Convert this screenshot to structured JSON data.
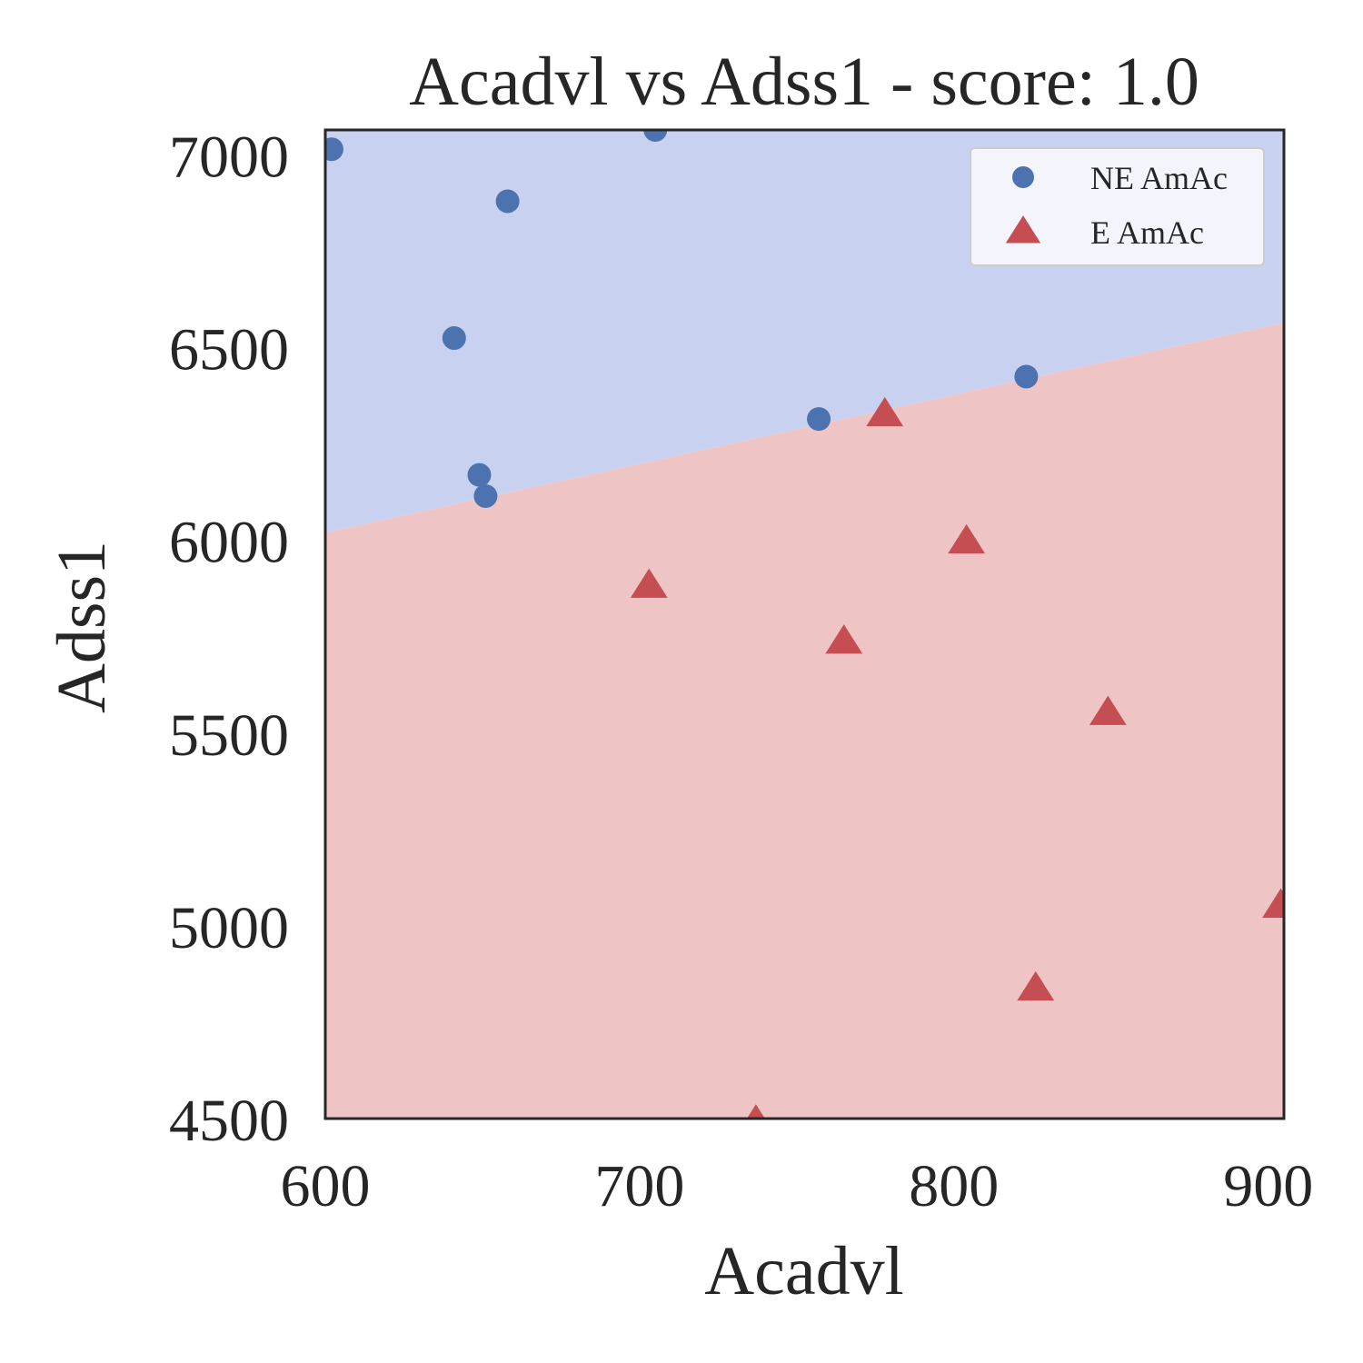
{
  "chart_data": {
    "type": "scatter",
    "title": "Acadvl vs Adss1 - score: 1.0",
    "xlabel": "Acadvl",
    "ylabel": "Adss1",
    "xlim": [
      600,
      905
    ],
    "ylim": [
      4500,
      7065
    ],
    "xticks": [
      "600",
      "700",
      "800",
      "900"
    ],
    "yticks": [
      "4500",
      "5000",
      "5500",
      "6000",
      "6500",
      "7000"
    ],
    "grid": false,
    "legend_position": "top-right",
    "decision_boundary": {
      "points": [
        [
          600,
          6020
        ],
        [
          905,
          6565
        ]
      ],
      "upper_region_color": "#c9d1f1",
      "lower_region_color": "#efc4c4"
    },
    "series": [
      {
        "name": "NE AmAc",
        "marker": "circle",
        "color": "#4c72b0",
        "points": [
          [
            602,
            7015
          ],
          [
            705,
            7065
          ],
          [
            658,
            6880
          ],
          [
            641,
            6525
          ],
          [
            649,
            6170
          ],
          [
            651,
            6115
          ],
          [
            757,
            6315
          ],
          [
            823,
            6425
          ]
        ]
      },
      {
        "name": "E AmAc",
        "marker": "triangle",
        "color": "#c44e52",
        "points": [
          [
            778,
            6325
          ],
          [
            804,
            5995
          ],
          [
            703,
            5880
          ],
          [
            765,
            5735
          ],
          [
            849,
            5550
          ],
          [
            904,
            5050
          ],
          [
            826,
            4835
          ],
          [
            737,
            4490
          ]
        ]
      }
    ]
  }
}
